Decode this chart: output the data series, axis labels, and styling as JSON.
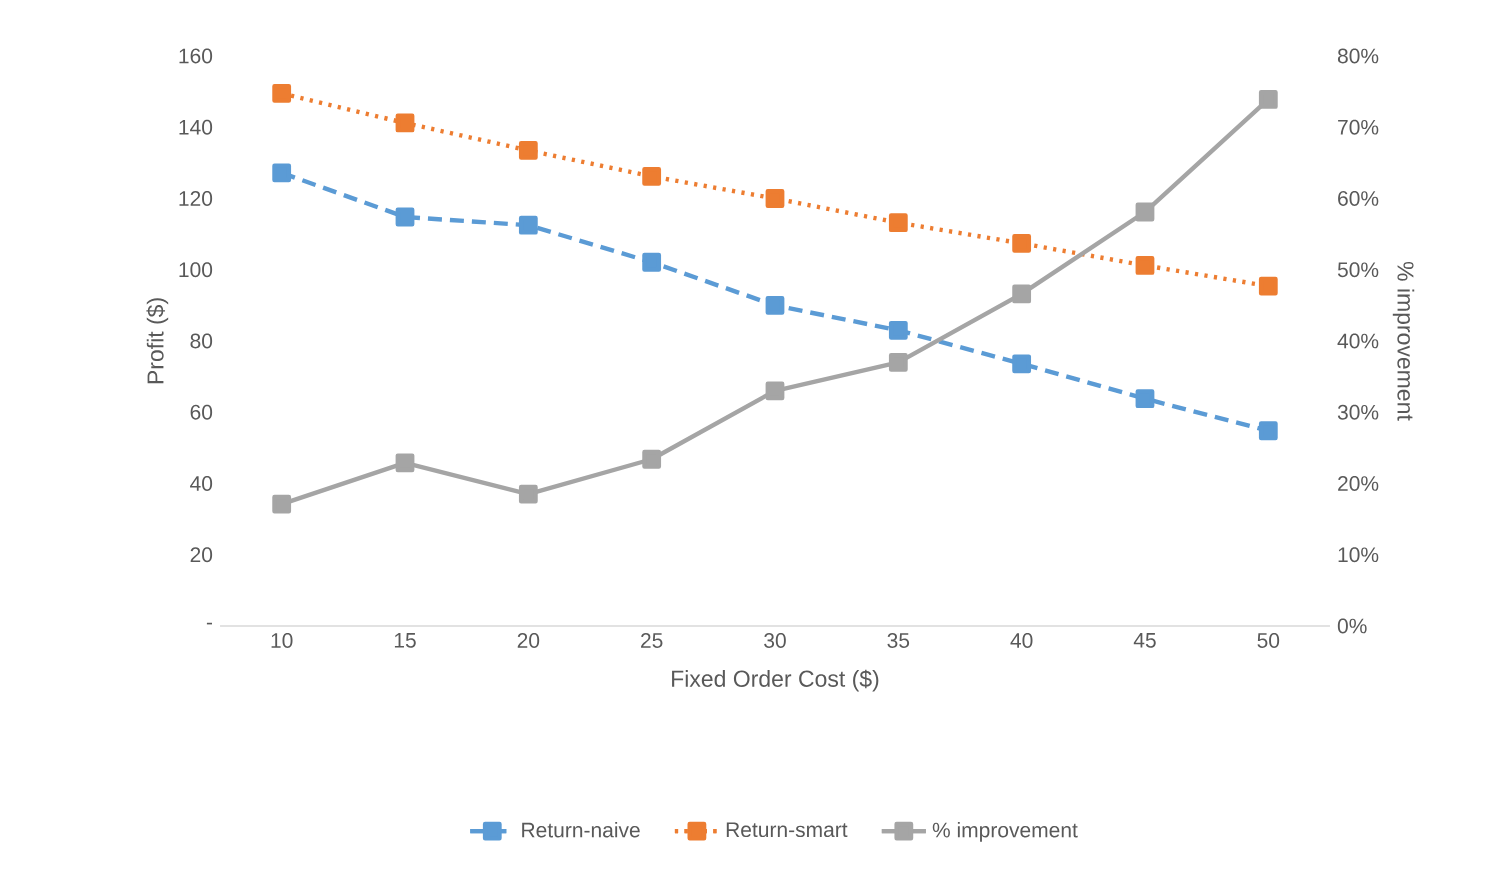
{
  "chart_data": {
    "type": "line",
    "xlabel": "Fixed Order Cost ($)",
    "ylabel": "Profit ($)",
    "y2label": "% improvement",
    "categories": [
      "10",
      "15",
      "20",
      "25",
      "30",
      "35",
      "40",
      "45",
      "50"
    ],
    "series": [
      {
        "name": "Return-naive",
        "color": "#5b9bd5",
        "line_style": "dashed",
        "values": [
          127.2,
          114.8,
          112.5,
          102.1,
          90,
          83,
          73.6,
          63.8,
          54.8
        ]
      },
      {
        "name": "Return-smart",
        "color": "#ed7d31",
        "line_style": "dotted",
        "values": [
          149.5,
          141.2,
          133.5,
          126.2,
          120,
          113.2,
          107.4,
          101.2,
          95.4
        ]
      },
      {
        "name": "% improvement",
        "color": "#a5a5a5",
        "line_style": "solid",
        "axis": "y2",
        "values": [
          17.1,
          22.9,
          18.5,
          23.4,
          33.0,
          37.0,
          46.6,
          58.1,
          73.9
        ]
      }
    ],
    "ylim": [
      0,
      160
    ],
    "yticks": [
      {
        "value": 0,
        "label": "-"
      },
      20,
      40,
      60,
      80,
      100,
      120,
      140,
      160
    ],
    "y2lim": [
      0,
      80
    ],
    "y2ticks": [
      {
        "value": 0,
        "label": "0%"
      },
      {
        "value": 10,
        "label": "10%"
      },
      {
        "value": 20,
        "label": "20%"
      },
      {
        "value": 30,
        "label": "30%"
      },
      {
        "value": 40,
        "label": "40%"
      },
      {
        "value": 50,
        "label": "50%"
      },
      {
        "value": 60,
        "label": "60%"
      },
      {
        "value": 70,
        "label": "70%"
      },
      {
        "value": 80,
        "label": "80%"
      }
    ],
    "marker": "square",
    "grid": false,
    "legend": "bottom"
  }
}
